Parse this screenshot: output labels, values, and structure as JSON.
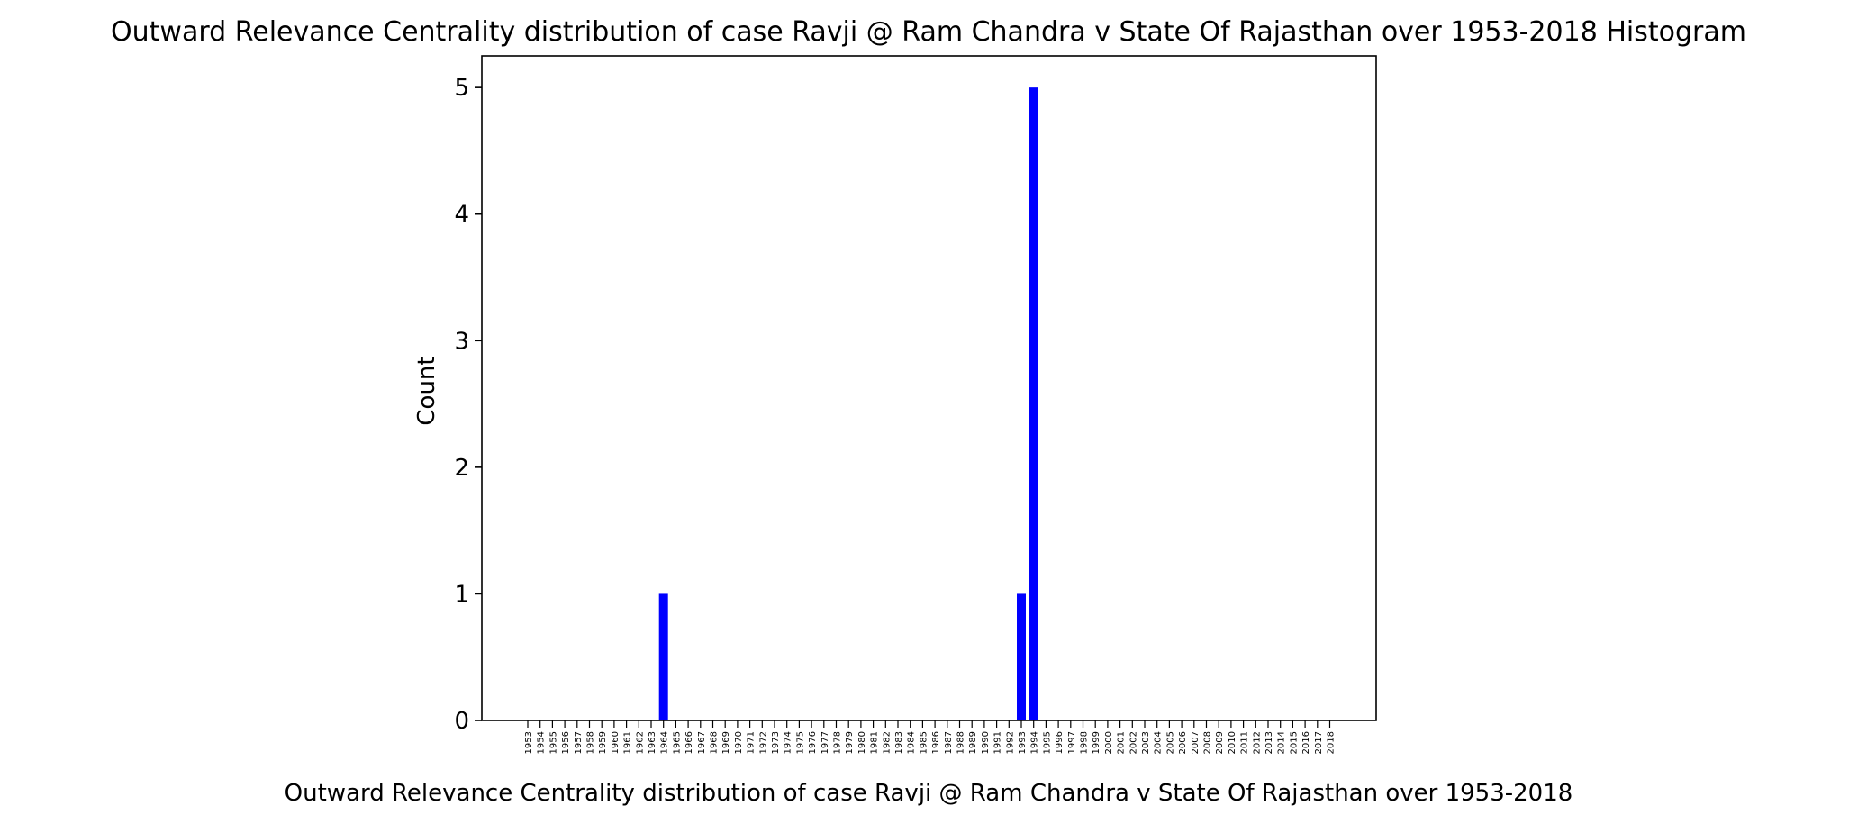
{
  "chart_data": {
    "type": "bar",
    "title": "Outward Relevance Centrality distribution of case Ravji @ Ram Chandra v State Of Rajasthan over 1953-2018 Histogram",
    "xlabel": "Outward Relevance Centrality distribution of case Ravji @ Ram Chandra v State Of Rajasthan over 1953-2018",
    "ylabel": "Count",
    "categories": [
      "1953",
      "1954",
      "1955",
      "1956",
      "1957",
      "1958",
      "1959",
      "1960",
      "1961",
      "1962",
      "1963",
      "1964",
      "1965",
      "1966",
      "1967",
      "1968",
      "1969",
      "1970",
      "1971",
      "1972",
      "1973",
      "1974",
      "1975",
      "1976",
      "1977",
      "1978",
      "1979",
      "1980",
      "1981",
      "1982",
      "1983",
      "1984",
      "1985",
      "1986",
      "1987",
      "1988",
      "1989",
      "1990",
      "1991",
      "1992",
      "1993",
      "1994",
      "1995",
      "1996",
      "1997",
      "1998",
      "1999",
      "2000",
      "2001",
      "2002",
      "2003",
      "2004",
      "2005",
      "2006",
      "2007",
      "2008",
      "2009",
      "2010",
      "2011",
      "2012",
      "2013",
      "2014",
      "2015",
      "2016",
      "2017",
      "2018"
    ],
    "values": [
      0,
      0,
      0,
      0,
      0,
      0,
      0,
      0,
      0,
      0,
      0,
      1,
      0,
      0,
      0,
      0,
      0,
      0,
      0,
      0,
      0,
      0,
      0,
      0,
      0,
      0,
      0,
      0,
      0,
      0,
      0,
      0,
      0,
      0,
      0,
      0,
      0,
      0,
      0,
      0,
      1,
      5,
      0,
      0,
      0,
      0,
      0,
      0,
      0,
      0,
      0,
      0,
      0,
      0,
      0,
      0,
      0,
      0,
      0,
      0,
      0,
      0,
      0,
      0,
      0,
      0
    ],
    "ylim": [
      0,
      5.25
    ],
    "yticks": [
      0,
      1,
      2,
      3,
      4,
      5
    ],
    "bar_color": "#0000ff",
    "grid": false,
    "legend": false
  }
}
